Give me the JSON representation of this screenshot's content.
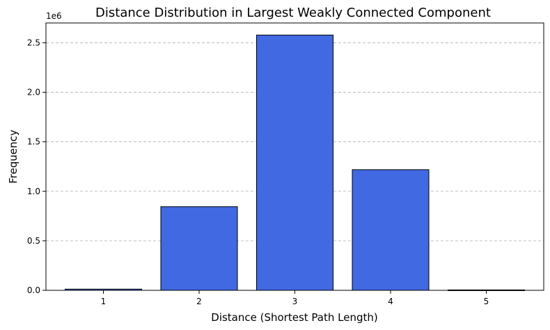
{
  "chart_data": {
    "type": "bar",
    "title": "Distance Distribution in Largest Weakly Connected Component",
    "xlabel": "Distance (Shortest Path Length)",
    "ylabel": "Frequency",
    "y_offset_label": "1e6",
    "categories": [
      "1",
      "2",
      "3",
      "4",
      "5"
    ],
    "values": [
      0.012,
      0.845,
      2.578,
      1.218,
      0.004
    ],
    "ylim": [
      0,
      2.7
    ],
    "yticks": [
      0.0,
      0.5,
      1.0,
      1.5,
      2.0,
      2.5
    ],
    "ytick_labels": [
      "0.0",
      "0.5",
      "1.0",
      "1.5",
      "2.0",
      "2.5"
    ],
    "grid": "y-dashed",
    "bar_color": "#4169e1",
    "edge_color": "#000000"
  }
}
